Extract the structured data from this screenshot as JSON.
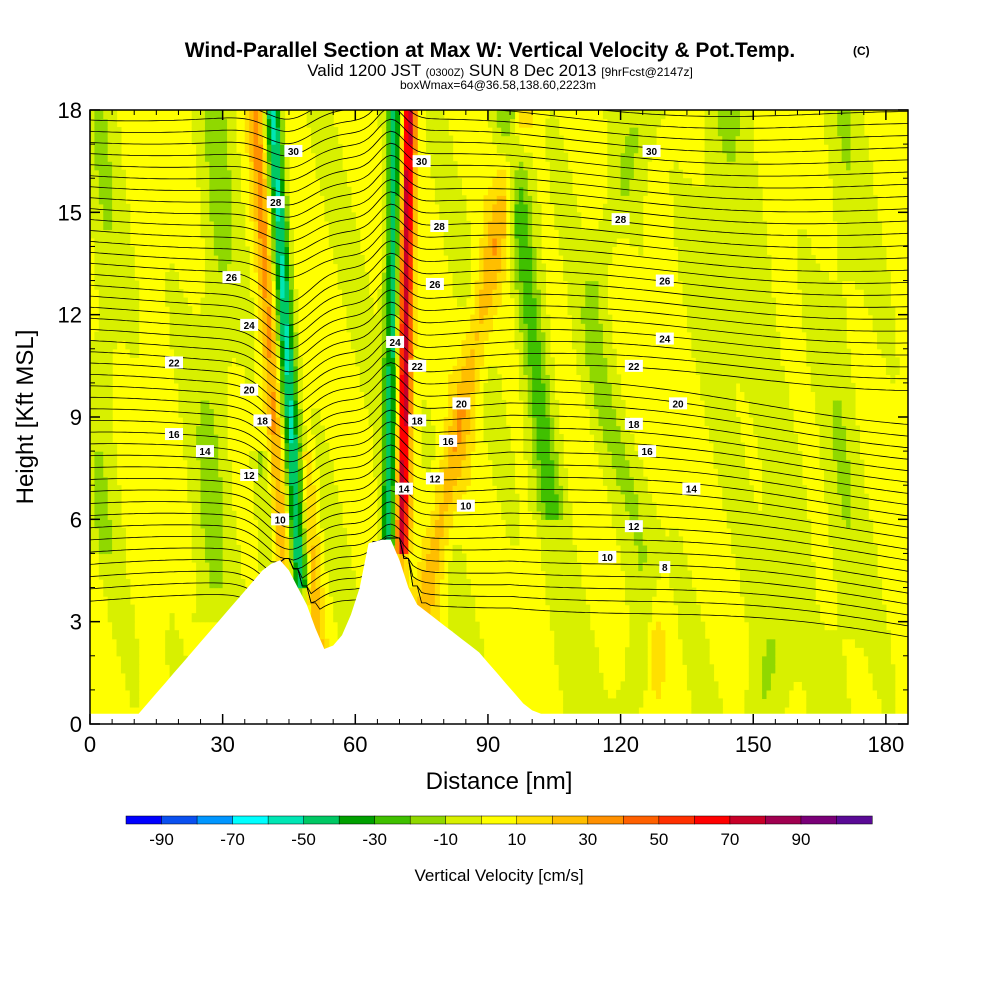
{
  "chart_data": {
    "type": "heatmap",
    "title": "Wind-Parallel Section at Max W: Vertical Velocity & Pot.Temp.",
    "title_mark": "(C)",
    "subtitle": {
      "valid": "Valid 1200 JST",
      "utc": "(0300Z)",
      "date": "SUN 8 Dec 2013",
      "fcst": "[9hrFcst@2147z]"
    },
    "box_info": "boxWmax=64@36.58,138.60,2223m",
    "xlabel": "Distance [nm]",
    "ylabel": "Height [Kft MSL]",
    "xlim": [
      0,
      185
    ],
    "ylim": [
      0,
      18
    ],
    "xticks": [
      0,
      30,
      60,
      90,
      120,
      150,
      180
    ],
    "yticks": [
      0,
      3,
      6,
      9,
      12,
      15,
      18
    ],
    "colorbar": {
      "label": "Vertical Velocity [cm/s]",
      "tick_values": [
        -90,
        -70,
        -50,
        -30,
        -10,
        10,
        30,
        50,
        70,
        90
      ],
      "colors": [
        "#0000ff",
        "#0a50f0",
        "#0096ff",
        "#00ffff",
        "#00e6b4",
        "#00c864",
        "#00a000",
        "#40c000",
        "#90d800",
        "#d8f000",
        "#ffff00",
        "#ffe000",
        "#ffbe00",
        "#ff9000",
        "#ff6000",
        "#ff3000",
        "#ff0000",
        "#c80028",
        "#a00050",
        "#7a0078",
        "#5a0a96"
      ]
    },
    "terrain_profile": [
      [
        0,
        0.3
      ],
      [
        11,
        0.3
      ],
      [
        13,
        0.6
      ],
      [
        15,
        0.9
      ],
      [
        17,
        1.2
      ],
      [
        19,
        1.5
      ],
      [
        21,
        1.8
      ],
      [
        23,
        2.1
      ],
      [
        25,
        2.4
      ],
      [
        27,
        2.7
      ],
      [
        29,
        3.0
      ],
      [
        31,
        3.3
      ],
      [
        33,
        3.6
      ],
      [
        35,
        3.9
      ],
      [
        37,
        4.2
      ],
      [
        39,
        4.5
      ],
      [
        41,
        4.7
      ],
      [
        43,
        4.8
      ],
      [
        45,
        4.5
      ],
      [
        47,
        4.0
      ],
      [
        49,
        3.5
      ],
      [
        51,
        2.8
      ],
      [
        53,
        2.2
      ],
      [
        55,
        2.3
      ],
      [
        57,
        2.6
      ],
      [
        59,
        3.2
      ],
      [
        61,
        4.0
      ],
      [
        63,
        5.3
      ],
      [
        66,
        5.4
      ],
      [
        68,
        5.4
      ],
      [
        70,
        4.8
      ],
      [
        72,
        4.0
      ],
      [
        74,
        3.5
      ],
      [
        76,
        3.3
      ],
      [
        78,
        3.1
      ],
      [
        80,
        2.9
      ],
      [
        82,
        2.7
      ],
      [
        84,
        2.5
      ],
      [
        86,
        2.3
      ],
      [
        88,
        2.1
      ],
      [
        90,
        1.8
      ],
      [
        92,
        1.5
      ],
      [
        94,
        1.2
      ],
      [
        96,
        0.9
      ],
      [
        98,
        0.6
      ],
      [
        100,
        0.4
      ],
      [
        102,
        0.3
      ],
      [
        185,
        0.3
      ]
    ],
    "contour_labels": [
      {
        "value": "30",
        "x": 46,
        "y": 16.8
      },
      {
        "value": "30",
        "x": 75,
        "y": 16.5
      },
      {
        "value": "30",
        "x": 127,
        "y": 16.8
      },
      {
        "value": "28",
        "x": 42,
        "y": 15.3
      },
      {
        "value": "28",
        "x": 79,
        "y": 14.6
      },
      {
        "value": "28",
        "x": 120,
        "y": 14.8
      },
      {
        "value": "26",
        "x": 32,
        "y": 13.1
      },
      {
        "value": "26",
        "x": 78,
        "y": 12.9
      },
      {
        "value": "26",
        "x": 130,
        "y": 13.0
      },
      {
        "value": "24",
        "x": 36,
        "y": 11.7
      },
      {
        "value": "24",
        "x": 69,
        "y": 11.2
      },
      {
        "value": "24",
        "x": 130,
        "y": 11.3
      },
      {
        "value": "22",
        "x": 19,
        "y": 10.6
      },
      {
        "value": "22",
        "x": 74,
        "y": 10.5
      },
      {
        "value": "22",
        "x": 123,
        "y": 10.5
      },
      {
        "value": "20",
        "x": 36,
        "y": 9.8
      },
      {
        "value": "20",
        "x": 84,
        "y": 9.4
      },
      {
        "value": "20",
        "x": 133,
        "y": 9.4
      },
      {
        "value": "18",
        "x": 39,
        "y": 8.9
      },
      {
        "value": "18",
        "x": 74,
        "y": 8.9
      },
      {
        "value": "18",
        "x": 123,
        "y": 8.8
      },
      {
        "value": "16",
        "x": 19,
        "y": 8.5
      },
      {
        "value": "16",
        "x": 81,
        "y": 8.3
      },
      {
        "value": "16",
        "x": 126,
        "y": 8.0
      },
      {
        "value": "14",
        "x": 26,
        "y": 8.0
      },
      {
        "value": "14",
        "x": 71,
        "y": 6.9
      },
      {
        "value": "14",
        "x": 136,
        "y": 6.9
      },
      {
        "value": "12",
        "x": 36,
        "y": 7.3
      },
      {
        "value": "12",
        "x": 78,
        "y": 7.2
      },
      {
        "value": "12",
        "x": 123,
        "y": 5.8
      },
      {
        "value": "10",
        "x": 43,
        "y": 6.0
      },
      {
        "value": "10",
        "x": 85,
        "y": 6.4
      },
      {
        "value": "10",
        "x": 117,
        "y": 4.9
      },
      {
        "value": "8",
        "x": 130,
        "y": 4.6
      }
    ]
  }
}
